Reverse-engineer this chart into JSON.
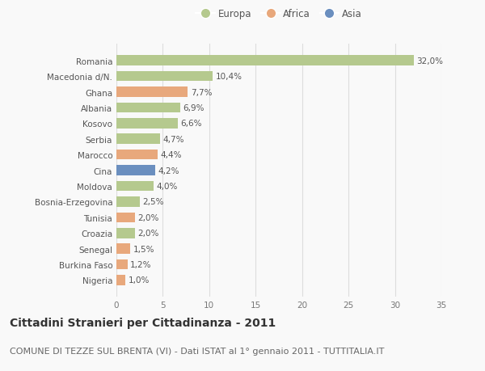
{
  "countries": [
    "Romania",
    "Macedonia d/N.",
    "Ghana",
    "Albania",
    "Kosovo",
    "Serbia",
    "Marocco",
    "Cina",
    "Moldova",
    "Bosnia-Erzegovina",
    "Tunisia",
    "Croazia",
    "Senegal",
    "Burkina Faso",
    "Nigeria"
  ],
  "values": [
    32.0,
    10.4,
    7.7,
    6.9,
    6.6,
    4.7,
    4.4,
    4.2,
    4.0,
    2.5,
    2.0,
    2.0,
    1.5,
    1.2,
    1.0
  ],
  "labels": [
    "32,0%",
    "10,4%",
    "7,7%",
    "6,9%",
    "6,6%",
    "4,7%",
    "4,4%",
    "4,2%",
    "4,0%",
    "2,5%",
    "2,0%",
    "2,0%",
    "1,5%",
    "1,2%",
    "1,0%"
  ],
  "continents": [
    "Europa",
    "Europa",
    "Africa",
    "Europa",
    "Europa",
    "Europa",
    "Africa",
    "Asia",
    "Europa",
    "Europa",
    "Africa",
    "Europa",
    "Africa",
    "Africa",
    "Africa"
  ],
  "colors": {
    "Europa": "#b5c98e",
    "Africa": "#e8a87c",
    "Asia": "#6b8fbf"
  },
  "title": "Cittadini Stranieri per Cittadinanza - 2011",
  "subtitle": "COMUNE DI TEZZE SUL BRENTA (VI) - Dati ISTAT al 1° gennaio 2011 - TUTTITALIA.IT",
  "xlim": [
    0,
    35
  ],
  "xticks": [
    0,
    5,
    10,
    15,
    20,
    25,
    30,
    35
  ],
  "background_color": "#f9f9f9",
  "grid_color": "#dddddd",
  "bar_height": 0.65,
  "title_fontsize": 10,
  "subtitle_fontsize": 8,
  "label_fontsize": 7.5,
  "tick_fontsize": 7.5,
  "legend_fontsize": 8.5
}
